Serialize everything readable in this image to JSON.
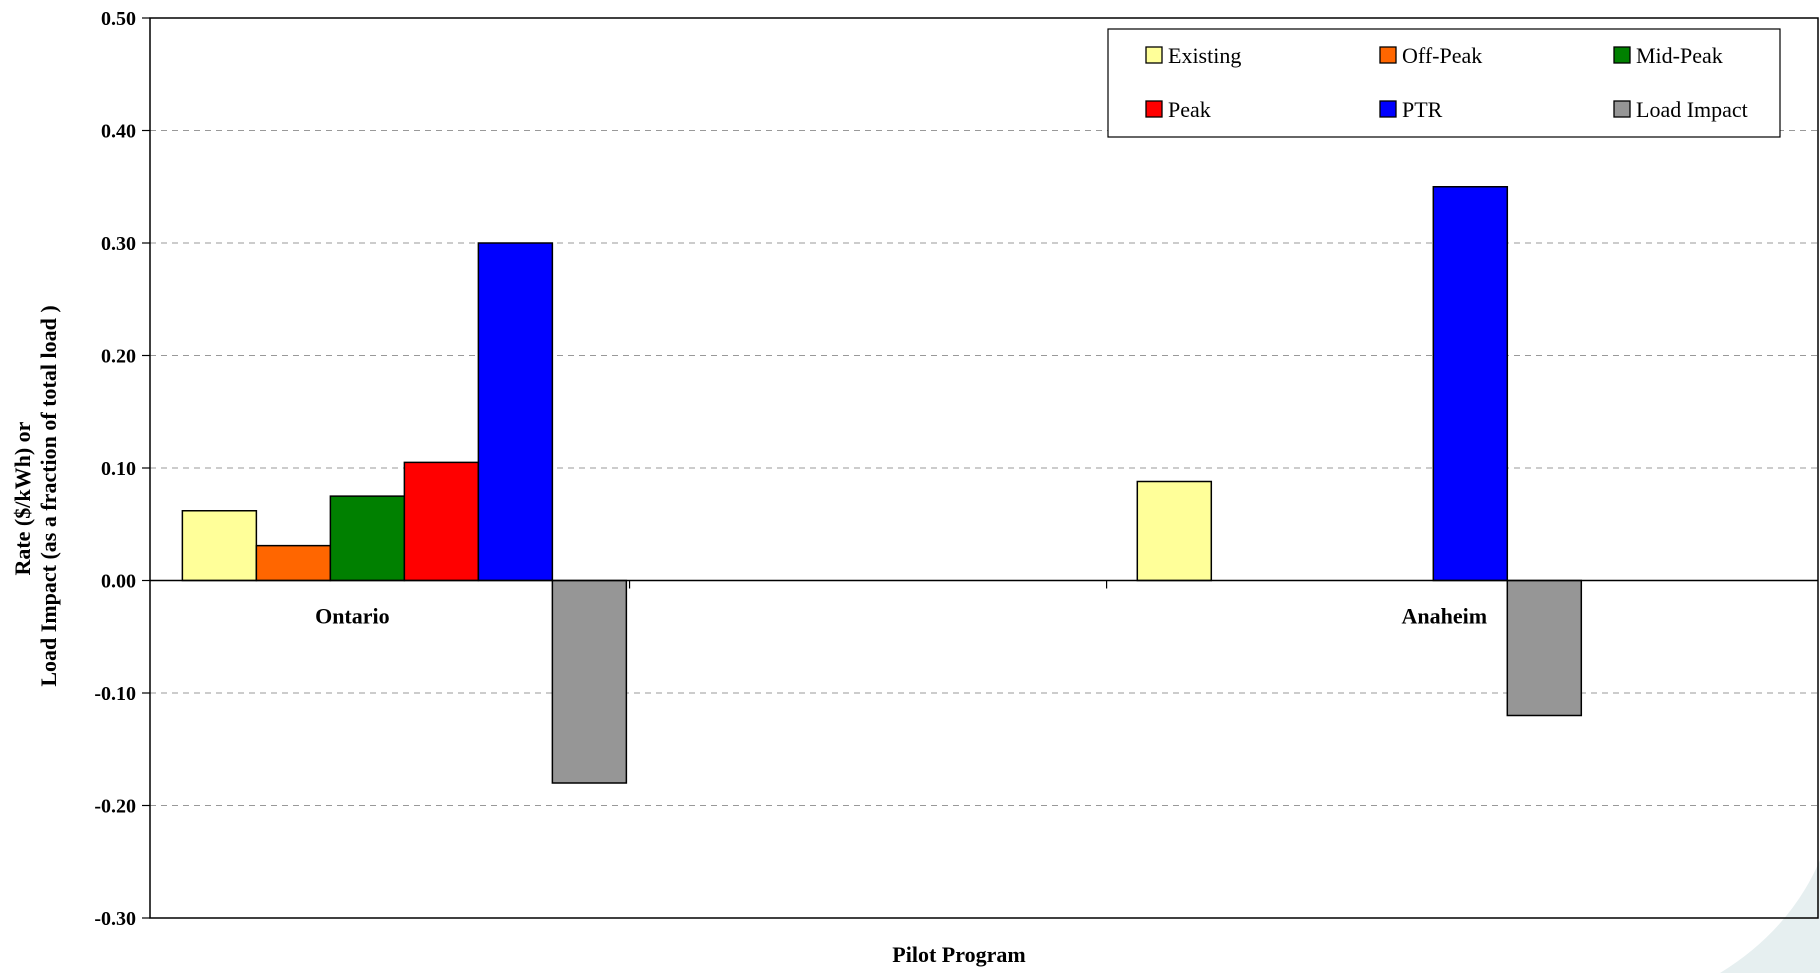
{
  "chart_data": {
    "type": "bar",
    "title": "",
    "xlabel": "Pilot Program",
    "ylabel_lines": [
      "Rate ($/kWh) or",
      "Load Impact (as a fraction of total load )"
    ],
    "categories": [
      "Ontario",
      "Anaheim"
    ],
    "ylim": [
      -0.3,
      0.5
    ],
    "yticks": [
      0.5,
      0.4,
      0.3,
      0.2,
      0.1,
      0.0,
      -0.1,
      -0.2,
      -0.3
    ],
    "ytick_labels": [
      "0.50",
      "0.40",
      "0.30",
      "0.20",
      "0.10",
      "0.00",
      "-0.10",
      "-0.20",
      "-0.30"
    ],
    "grid": "horizontal dashed",
    "legend_position": "top-right",
    "series": [
      {
        "name": "Existing",
        "color": "#FFFF99",
        "values": [
          0.062,
          0.088
        ]
      },
      {
        "name": "Off-Peak",
        "color": "#FF6600",
        "values": [
          0.031,
          null
        ]
      },
      {
        "name": "Mid-Peak",
        "color": "#008000",
        "values": [
          0.075,
          null
        ]
      },
      {
        "name": "Peak",
        "color": "#FF0000",
        "values": [
          0.105,
          null
        ]
      },
      {
        "name": "PTR",
        "color": "#0000FF",
        "values": [
          0.3,
          0.35
        ]
      },
      {
        "name": "Load Impact",
        "color": "#969696",
        "values": [
          -0.18,
          -0.12
        ]
      }
    ]
  }
}
